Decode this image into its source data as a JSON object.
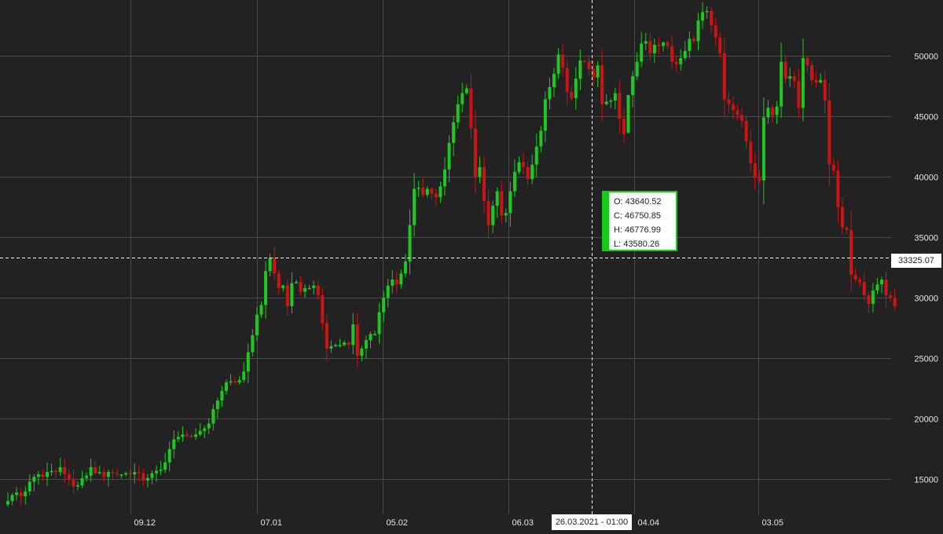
{
  "chart_data": {
    "type": "candlestick",
    "x_ticks": [
      "09.12",
      "07.01",
      "05.02",
      "06.03",
      "04.04",
      "03.05"
    ],
    "y_ticks": [
      15000,
      20000,
      25000,
      30000,
      35000,
      40000,
      45000,
      50000
    ],
    "ylim": [
      13000,
      55000
    ],
    "grid": true,
    "colors": {
      "up": "#1ec81e",
      "down": "#cc1414",
      "grid": "#4a4a4a",
      "background": "#222222",
      "text": "#e6e6e6"
    },
    "closes": [
      13200,
      13700,
      13900,
      13600,
      14000,
      14800,
      15200,
      15400,
      15200,
      15600,
      15700,
      15600,
      16000,
      15400,
      15000,
      14400,
      14500,
      15100,
      15300,
      16000,
      15500,
      15600,
      15200,
      15600,
      15500,
      15400,
      15400,
      15500,
      15400,
      15600,
      15500,
      14900,
      15100,
      15500,
      15700,
      15800,
      16400,
      17500,
      18300,
      18500,
      18700,
      18600,
      18500,
      18700,
      19000,
      19200,
      19600,
      20800,
      21500,
      22300,
      23000,
      23100,
      23000,
      23200,
      23900,
      25500,
      26900,
      28600,
      29400,
      32200,
      33300,
      32000,
      30800,
      31000,
      29300,
      31200,
      31300,
      30500,
      30800,
      30800,
      31000,
      30200,
      27900,
      25800,
      26000,
      26100,
      26100,
      26300,
      26100,
      27800,
      25200,
      25800,
      26500,
      27000,
      27000,
      28800,
      30000,
      31000,
      31500,
      31100,
      32000,
      33000,
      36000,
      39000,
      39100,
      38500,
      39000,
      38600,
      38300,
      39200,
      40600,
      42800,
      44500,
      46000,
      46900,
      47300,
      44000,
      40000,
      40800,
      38000,
      36000,
      37600,
      38800,
      36800,
      37000,
      38800,
      40400,
      41200,
      40800,
      39800,
      41000,
      42500,
      43800,
      46400,
      47400,
      48500,
      50100,
      49000,
      47000,
      46500,
      48100,
      49600,
      49500,
      48900,
      48200,
      49200,
      46000,
      46200,
      46300,
      46900,
      44800,
      43500,
      46750.85,
      48300,
      49500,
      51000,
      51200,
      50200,
      50900,
      50800,
      51100,
      50800,
      49500,
      49300,
      49800,
      50400,
      51400,
      51200,
      52900,
      53600,
      53700,
      52500,
      51500,
      50200,
      46400,
      46000,
      45500,
      45100,
      44600,
      42900,
      41100,
      39900,
      39700,
      44900,
      45700,
      45100,
      45800,
      49500,
      48100,
      48300,
      47900,
      45700,
      49800,
      49200,
      48000,
      47800,
      48000,
      46300,
      41000,
      40500,
      37500,
      35800,
      35600,
      31900,
      31500,
      31300,
      30200,
      29500,
      30600,
      31100,
      31500,
      30200,
      30000,
      29300
    ],
    "highlight_index": 142,
    "crosshair": {
      "price": "33325.07",
      "time": "26.03.2021 - 01:00",
      "tooltip": [
        "O: 43640.52",
        "C: 46750.85",
        "H: 46776.99",
        "L: 43580.26"
      ]
    }
  }
}
